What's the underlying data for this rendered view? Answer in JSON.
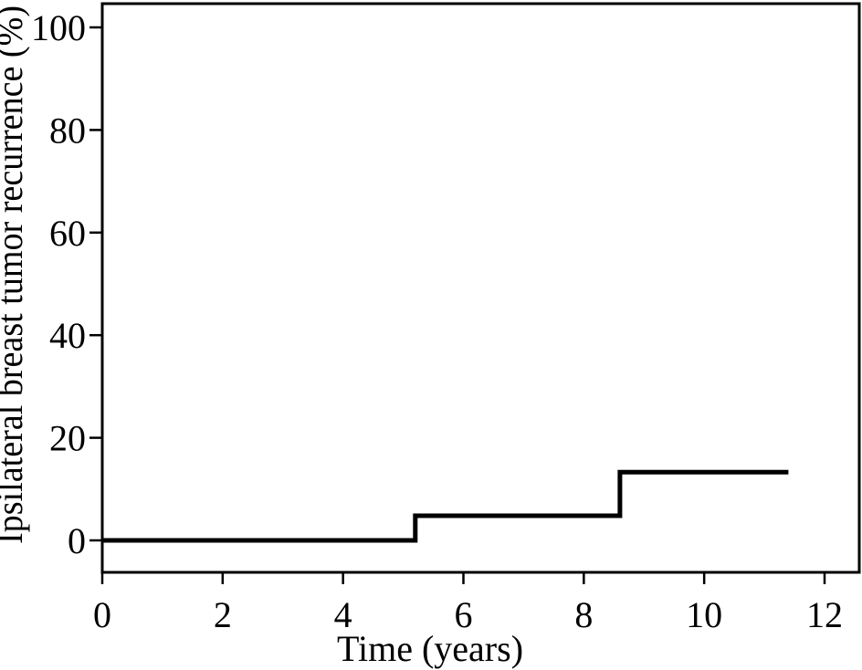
{
  "figure": {
    "background_color": "#ffffff",
    "axis_color": "#000000",
    "text_color": "#000000"
  },
  "chart_data": {
    "type": "line",
    "subtype": "kaplan-meier-step",
    "title": "",
    "xlabel": "Time (years)",
    "ylabel": "Ipsilateral breast tumor recurrence (%)",
    "xticks": [
      0,
      2,
      4,
      6,
      8,
      10,
      12
    ],
    "yticks": [
      0,
      20,
      40,
      60,
      80,
      100
    ],
    "xlim": [
      0,
      12.6
    ],
    "ylim": [
      -6,
      105
    ],
    "grid": false,
    "legend": false,
    "line_color": "#000000",
    "line_width": 5,
    "series": [
      {
        "name": "ipsilateral-breast-tumor-recurrence",
        "color": "#000000",
        "points": [
          {
            "x": 0,
            "y": 0
          },
          {
            "x": 5.2,
            "y": 0
          },
          {
            "x": 5.2,
            "y": 4.8
          },
          {
            "x": 8.6,
            "y": 4.8
          },
          {
            "x": 8.6,
            "y": 13.3
          },
          {
            "x": 11.4,
            "y": 13.3
          }
        ],
        "events": [
          {
            "time_years": 5.2,
            "recurrence_pct": 4.8
          },
          {
            "time_years": 8.6,
            "recurrence_pct": 13.3
          }
        ],
        "followup_end_years": 11.4
      }
    ]
  }
}
